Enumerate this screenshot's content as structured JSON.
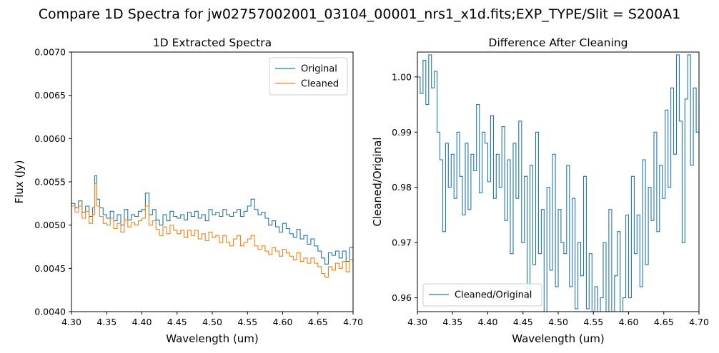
{
  "figure": {
    "title": "Compare 1D Spectra for jw02757002001_03104_00001_nrs1_x1d.fits;EXP_TYPE/Slit = S200A1"
  },
  "colors": {
    "original": "#1f77b4",
    "cleaned": "#ff7f0e",
    "axis": "#000000"
  },
  "chart_data": [
    {
      "type": "line",
      "title": "1D Extracted Spectra",
      "xlabel": "Wavelength (um)",
      "ylabel": "Flux (Jy)",
      "xlim": [
        4.3,
        4.7
      ],
      "ylim": [
        0.004,
        0.007
      ],
      "xticks": [
        "4.30",
        "4.35",
        "4.40",
        "4.45",
        "4.50",
        "4.55",
        "4.60",
        "4.65",
        "4.70"
      ],
      "yticks": [
        "0.0040",
        "0.0045",
        "0.0050",
        "0.0055",
        "0.0060",
        "0.0065",
        "0.0070"
      ],
      "legend": {
        "loc": "upper right",
        "entries": [
          "Original",
          "Cleaned"
        ]
      },
      "series": [
        {
          "name": "Original",
          "color": "#1f77b4",
          "x": [
            4.3,
            4.305,
            4.31,
            4.315,
            4.32,
            4.325,
            4.33,
            4.333,
            4.336,
            4.34,
            4.345,
            4.35,
            4.355,
            4.36,
            4.365,
            4.37,
            4.375,
            4.38,
            4.385,
            4.39,
            4.395,
            4.4,
            4.405,
            4.41,
            4.415,
            4.42,
            4.425,
            4.43,
            4.435,
            4.44,
            4.445,
            4.45,
            4.455,
            4.46,
            4.465,
            4.47,
            4.475,
            4.48,
            4.485,
            4.49,
            4.495,
            4.5,
            4.505,
            4.51,
            4.515,
            4.52,
            4.525,
            4.53,
            4.535,
            4.54,
            4.545,
            4.55,
            4.555,
            4.56,
            4.565,
            4.57,
            4.575,
            4.58,
            4.585,
            4.59,
            4.595,
            4.6,
            4.605,
            4.61,
            4.615,
            4.62,
            4.625,
            4.63,
            4.635,
            4.64,
            4.645,
            4.65,
            4.655,
            4.66,
            4.665,
            4.67,
            4.675,
            4.68,
            4.685,
            4.69,
            4.695,
            4.7
          ],
          "values": [
            0.00525,
            0.0052,
            0.00528,
            0.00515,
            0.00522,
            0.0051,
            0.0052,
            0.00557,
            0.0053,
            0.0052,
            0.00512,
            0.00508,
            0.00516,
            0.00505,
            0.00512,
            0.005,
            0.00518,
            0.00506,
            0.00512,
            0.0051,
            0.00516,
            0.00518,
            0.00537,
            0.00512,
            0.00518,
            0.00506,
            0.005,
            0.00512,
            0.00505,
            0.00516,
            0.0051,
            0.00508,
            0.00512,
            0.00506,
            0.00515,
            0.0051,
            0.00516,
            0.00508,
            0.00512,
            0.00505,
            0.00518,
            0.00512,
            0.00515,
            0.0051,
            0.00518,
            0.00512,
            0.0051,
            0.00515,
            0.00518,
            0.0051,
            0.00516,
            0.00522,
            0.0053,
            0.00518,
            0.00512,
            0.00515,
            0.00508,
            0.005,
            0.00505,
            0.00498,
            0.00492,
            0.00502,
            0.00496,
            0.0049,
            0.00486,
            0.00495,
            0.00484,
            0.00488,
            0.00478,
            0.00484,
            0.00476,
            0.0047,
            0.00462,
            0.00455,
            0.00468,
            0.00465,
            0.0047,
            0.00462,
            0.0047,
            0.00458,
            0.00474,
            0.00452
          ]
        },
        {
          "name": "Cleaned",
          "color": "#ff7f0e",
          "x": [
            4.3,
            4.305,
            4.31,
            4.315,
            4.32,
            4.325,
            4.33,
            4.333,
            4.336,
            4.34,
            4.345,
            4.35,
            4.355,
            4.36,
            4.365,
            4.37,
            4.375,
            4.38,
            4.385,
            4.39,
            4.395,
            4.4,
            4.405,
            4.41,
            4.415,
            4.42,
            4.425,
            4.43,
            4.435,
            4.44,
            4.445,
            4.45,
            4.455,
            4.46,
            4.465,
            4.47,
            4.475,
            4.48,
            4.485,
            4.49,
            4.495,
            4.5,
            4.505,
            4.51,
            4.515,
            4.52,
            4.525,
            4.53,
            4.535,
            4.54,
            4.545,
            4.55,
            4.555,
            4.56,
            4.565,
            4.57,
            4.575,
            4.58,
            4.585,
            4.59,
            4.595,
            4.6,
            4.605,
            4.61,
            4.615,
            4.62,
            4.625,
            4.63,
            4.635,
            4.64,
            4.645,
            4.65,
            4.655,
            4.66,
            4.665,
            4.67,
            4.675,
            4.68,
            4.685,
            4.69,
            4.695,
            4.7
          ],
          "values": [
            0.00522,
            0.00515,
            0.00522,
            0.00508,
            0.00516,
            0.00502,
            0.00512,
            0.00548,
            0.00522,
            0.0051,
            0.00502,
            0.005,
            0.00508,
            0.00496,
            0.00502,
            0.00492,
            0.00506,
            0.00498,
            0.00503,
            0.005,
            0.00505,
            0.00508,
            0.00522,
            0.005,
            0.00505,
            0.00495,
            0.00488,
            0.00498,
            0.0049,
            0.005,
            0.00494,
            0.0049,
            0.00494,
            0.00486,
            0.00494,
            0.00488,
            0.00494,
            0.00484,
            0.0049,
            0.00482,
            0.00492,
            0.00486,
            0.00488,
            0.0048,
            0.00488,
            0.0048,
            0.00476,
            0.00484,
            0.00488,
            0.00476,
            0.0048,
            0.00484,
            0.00488,
            0.00476,
            0.00472,
            0.00476,
            0.0047,
            0.00466,
            0.00474,
            0.0047,
            0.00464,
            0.00472,
            0.00468,
            0.00464,
            0.0046,
            0.00468,
            0.00458,
            0.00462,
            0.00456,
            0.00462,
            0.00456,
            0.00452,
            0.00444,
            0.0044,
            0.00452,
            0.00448,
            0.00456,
            0.0045,
            0.00458,
            0.00446,
            0.0046,
            0.0045
          ]
        }
      ]
    },
    {
      "type": "line",
      "title": "Difference After Cleaning",
      "xlabel": "Wavelength (um)",
      "ylabel": "Cleaned/Original",
      "xlim": [
        4.3,
        4.7
      ],
      "ylim": [
        0.9575,
        1.0045
      ],
      "xticks": [
        "4.30",
        "4.35",
        "4.40",
        "4.45",
        "4.50",
        "4.55",
        "4.60",
        "4.65",
        "4.70"
      ],
      "yticks": [
        "0.96",
        "0.97",
        "0.98",
        "0.99",
        "1.00"
      ],
      "legend": {
        "loc": "lower left",
        "entries": [
          "Cleaned/Original"
        ]
      },
      "series": [
        {
          "name": "Cleaned/Original",
          "color": "#1f77b4",
          "x": [
            4.3,
            4.304,
            4.308,
            4.312,
            4.316,
            4.32,
            4.324,
            4.328,
            4.332,
            4.336,
            4.34,
            4.344,
            4.348,
            4.352,
            4.356,
            4.36,
            4.364,
            4.368,
            4.372,
            4.376,
            4.38,
            4.384,
            4.388,
            4.392,
            4.396,
            4.4,
            4.404,
            4.408,
            4.412,
            4.416,
            4.42,
            4.424,
            4.428,
            4.432,
            4.436,
            4.44,
            4.444,
            4.448,
            4.452,
            4.456,
            4.46,
            4.464,
            4.468,
            4.472,
            4.476,
            4.48,
            4.484,
            4.488,
            4.492,
            4.496,
            4.5,
            4.504,
            4.508,
            4.512,
            4.516,
            4.52,
            4.524,
            4.528,
            4.532,
            4.536,
            4.54,
            4.544,
            4.548,
            4.552,
            4.556,
            4.56,
            4.564,
            4.568,
            4.572,
            4.576,
            4.58,
            4.584,
            4.588,
            4.592,
            4.596,
            4.6,
            4.604,
            4.608,
            4.612,
            4.616,
            4.62,
            4.624,
            4.628,
            4.632,
            4.636,
            4.64,
            4.644,
            4.648,
            4.652,
            4.656,
            4.66,
            4.664,
            4.668,
            4.672,
            4.676,
            4.68,
            4.684,
            4.688,
            4.692,
            4.696,
            4.7
          ],
          "values": [
            1.0,
            0.997,
            1.003,
            0.995,
            1.004,
            0.998,
            1.001,
            0.99,
            0.985,
            0.972,
            0.988,
            0.98,
            0.986,
            0.978,
            0.99,
            0.982,
            0.975,
            0.988,
            0.976,
            0.986,
            0.983,
            0.995,
            0.979,
            0.99,
            0.988,
            0.981,
            0.993,
            0.978,
            0.986,
            0.98,
            0.991,
            0.974,
            0.985,
            0.968,
            0.988,
            0.978,
            0.992,
            0.97,
            0.982,
            0.96,
            0.984,
            0.966,
            0.99,
            0.968,
            0.976,
            0.957,
            0.98,
            0.965,
            0.986,
            0.962,
            0.976,
            0.97,
            0.968,
            0.984,
            0.962,
            0.978,
            0.958,
            0.97,
            0.964,
            0.982,
            0.958,
            0.968,
            0.957,
            0.962,
            0.957,
            0.96,
            0.97,
            0.957,
            0.976,
            0.957,
            0.964,
            0.972,
            0.957,
            0.96,
            0.975,
            0.96,
            0.982,
            0.968,
            0.975,
            0.962,
            0.985,
            0.966,
            0.98,
            0.974,
            0.99,
            0.972,
            0.984,
            0.978,
            0.994,
            0.98,
            0.998,
            0.986,
            1.004,
            0.992,
            0.97,
            0.996,
            1.004,
            0.984,
            0.998,
            0.99,
            0.995
          ]
        }
      ]
    }
  ]
}
